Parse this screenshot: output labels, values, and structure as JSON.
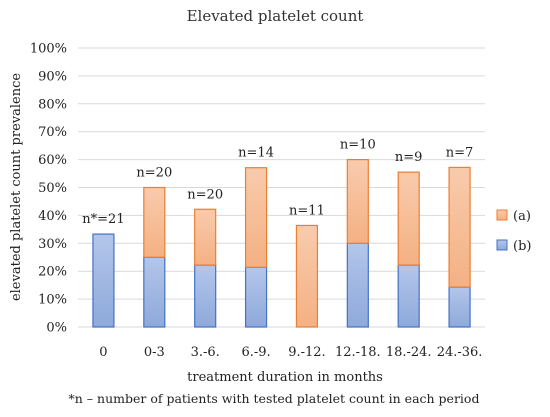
{
  "chart_data": {
    "type": "bar",
    "stacked": true,
    "title": "Elevated platelet count",
    "xlabel": "treatment duration in months",
    "ylabel": "elevated platelet count prevalence",
    "ylim": [
      0,
      100
    ],
    "yticks": [
      "0%",
      "10%",
      "20%",
      "30%",
      "40%",
      "50%",
      "60%",
      "70%",
      "80%",
      "90%",
      "100%"
    ],
    "grid": true,
    "legend_position": "right",
    "categories": [
      "0",
      "0-3",
      "3.-6.",
      "6.-9.",
      "9.-12.",
      "12.-18.",
      "18.-24.",
      "24.-36."
    ],
    "n_labels": [
      "n*=21",
      "n=20",
      "n=20",
      "n=14",
      "n=11",
      "n=10",
      "n=9",
      "n=7"
    ],
    "series": [
      {
        "name": "(b)",
        "color": "#8ea9db",
        "values": [
          33.3,
          25.0,
          22.2,
          21.4,
          0,
          30.0,
          22.2,
          14.3
        ]
      },
      {
        "name": "(a)",
        "color": "#f4b183",
        "values": [
          0,
          25.0,
          20.0,
          35.7,
          36.4,
          30.0,
          33.3,
          42.9
        ]
      }
    ],
    "footnote": "*n – number of patients with tested platelet count in each period"
  }
}
